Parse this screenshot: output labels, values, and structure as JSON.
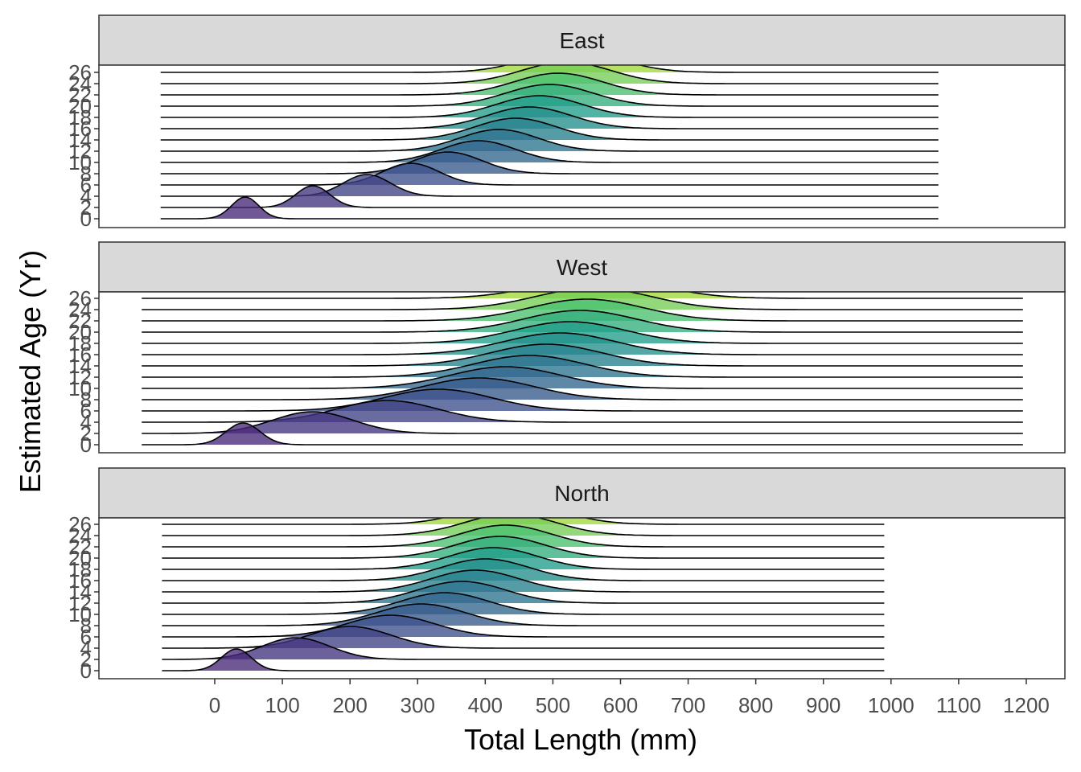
{
  "chart_data": {
    "type": "area",
    "subtype": "ridgeline",
    "xlabel": "Total Length (mm)",
    "ylabel": "Estimated Age (Yr)",
    "xlim": [
      -175,
      1265
    ],
    "x_ticks": [
      0,
      100,
      200,
      300,
      400,
      500,
      600,
      700,
      800,
      900,
      1000,
      1100,
      1200
    ],
    "y_ticks": [
      0,
      2,
      4,
      6,
      8,
      10,
      12,
      14,
      16,
      18,
      20,
      22,
      24,
      26
    ],
    "ages": [
      0,
      2,
      4,
      6,
      8,
      10,
      12,
      14,
      16,
      18,
      20,
      22,
      24,
      26
    ],
    "color_scale": "viridis (age)",
    "grid": false,
    "legend": "none",
    "panels": [
      {
        "name": "East",
        "baseline_range": [
          -80,
          1070
        ],
        "series": [
          {
            "age": 0,
            "mode": 45,
            "sd": 20
          },
          {
            "age": 2,
            "mode": 145,
            "sd": 25
          },
          {
            "age": 4,
            "mode": 225,
            "sd": 35
          },
          {
            "age": 6,
            "mode": 290,
            "sd": 42
          },
          {
            "age": 8,
            "mode": 345,
            "sd": 50
          },
          {
            "age": 10,
            "mode": 390,
            "sd": 55
          },
          {
            "age": 12,
            "mode": 420,
            "sd": 58
          },
          {
            "age": 14,
            "mode": 445,
            "sd": 60
          },
          {
            "age": 16,
            "mode": 465,
            "sd": 62
          },
          {
            "age": 18,
            "mode": 480,
            "sd": 63
          },
          {
            "age": 20,
            "mode": 495,
            "sd": 64
          },
          {
            "age": 22,
            "mode": 508,
            "sd": 65
          },
          {
            "age": 24,
            "mode": 520,
            "sd": 66
          },
          {
            "age": 26,
            "mode": 530,
            "sd": 67
          }
        ]
      },
      {
        "name": "West",
        "baseline_range": [
          -108,
          1195
        ],
        "series": [
          {
            "age": 0,
            "mode": 42,
            "sd": 25
          },
          {
            "age": 2,
            "mode": 145,
            "sd": 60
          },
          {
            "age": 4,
            "mode": 255,
            "sd": 75
          },
          {
            "age": 6,
            "mode": 330,
            "sd": 80
          },
          {
            "age": 8,
            "mode": 390,
            "sd": 82
          },
          {
            "age": 10,
            "mode": 430,
            "sd": 82
          },
          {
            "age": 12,
            "mode": 465,
            "sd": 82
          },
          {
            "age": 14,
            "mode": 490,
            "sd": 82
          },
          {
            "age": 16,
            "mode": 510,
            "sd": 82
          },
          {
            "age": 18,
            "mode": 525,
            "sd": 82
          },
          {
            "age": 20,
            "mode": 540,
            "sd": 83
          },
          {
            "age": 22,
            "mode": 550,
            "sd": 84
          },
          {
            "age": 24,
            "mode": 560,
            "sd": 85
          },
          {
            "age": 26,
            "mode": 568,
            "sd": 86
          }
        ]
      },
      {
        "name": "North",
        "baseline_range": [
          -78,
          990
        ],
        "series": [
          {
            "age": 0,
            "mode": 32,
            "sd": 22
          },
          {
            "age": 2,
            "mode": 120,
            "sd": 50
          },
          {
            "age": 4,
            "mode": 200,
            "sd": 60
          },
          {
            "age": 6,
            "mode": 260,
            "sd": 65
          },
          {
            "age": 8,
            "mode": 305,
            "sd": 65
          },
          {
            "age": 10,
            "mode": 340,
            "sd": 65
          },
          {
            "age": 12,
            "mode": 365,
            "sd": 65
          },
          {
            "age": 14,
            "mode": 385,
            "sd": 65
          },
          {
            "age": 16,
            "mode": 400,
            "sd": 65
          },
          {
            "age": 18,
            "mode": 412,
            "sd": 65
          },
          {
            "age": 20,
            "mode": 422,
            "sd": 66
          },
          {
            "age": 22,
            "mode": 430,
            "sd": 66
          },
          {
            "age": 24,
            "mode": 437,
            "sd": 67
          },
          {
            "age": 26,
            "mode": 443,
            "sd": 68
          }
        ]
      }
    ]
  }
}
